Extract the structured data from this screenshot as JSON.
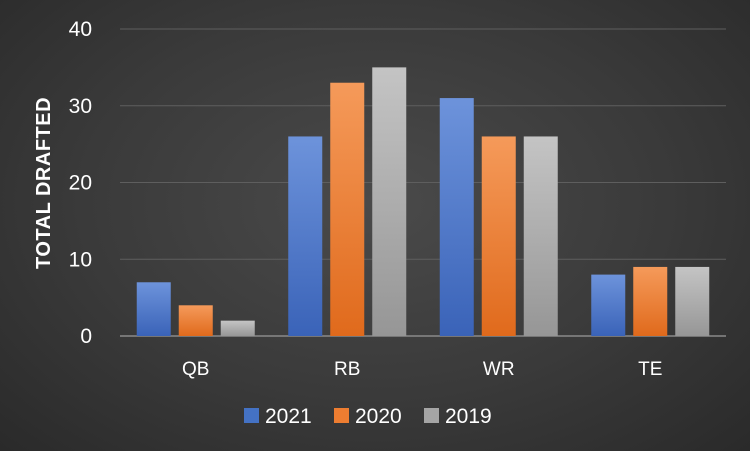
{
  "chart_data": {
    "type": "bar",
    "title": "",
    "xlabel": "",
    "ylabel": "TOTAL DRAFTED",
    "ylim": [
      0,
      40
    ],
    "yticks": [
      0,
      10,
      20,
      30,
      40
    ],
    "grid": true,
    "legend_position": "bottom",
    "categories": [
      "QB",
      "RB",
      "WR",
      "TE"
    ],
    "series": [
      {
        "name": "2021",
        "color": "#4472c4",
        "values": [
          7,
          26,
          31,
          8
        ]
      },
      {
        "name": "2020",
        "color": "#ed7d31",
        "values": [
          4,
          33,
          26,
          9
        ]
      },
      {
        "name": "2019",
        "color": "#a5a5a5",
        "values": [
          2,
          35,
          26,
          9
        ]
      }
    ]
  }
}
